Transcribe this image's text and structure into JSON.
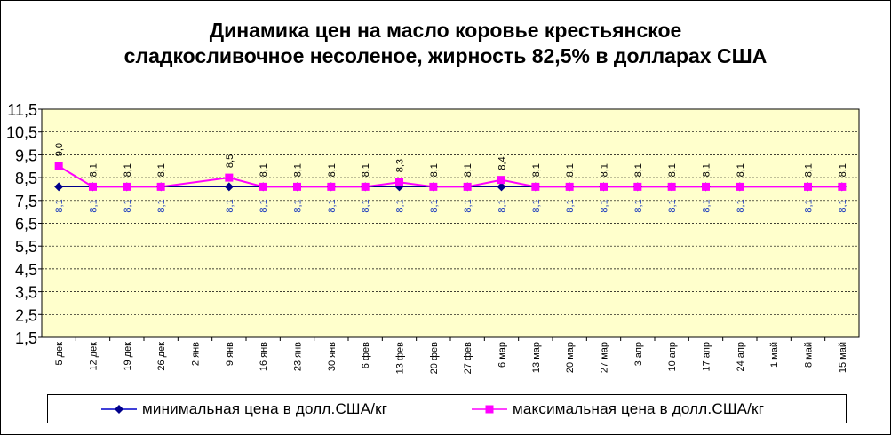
{
  "chart_data": {
    "type": "line",
    "title": "Динамика цен на масло коровье крестьянское сладкосливочное несоленое, жирность 82,5%  в долларах США",
    "title_lines": [
      "Динамика цен на масло коровье крестьянское",
      "сладкосливочное несоленое, жирность  82,5%  в долларах США"
    ],
    "categories": [
      "5 дек",
      "12 дек",
      "19 дек",
      "26 дек",
      "2 янв",
      "9 янв",
      "16 янв",
      "23 янв",
      "30 янв",
      "6 фев",
      "13 фев",
      "20 фев",
      "27 фев",
      "6 мар",
      "13 мар",
      "20 мар",
      "27 мар",
      "3 апр",
      "10 апр",
      "17 апр",
      "24 апр",
      "1 май",
      "8 май",
      "15 май"
    ],
    "y_ticks": [
      "11,5",
      "10,5",
      "9,5",
      "8,5",
      "7,5",
      "6,5",
      "5,5",
      "4,5",
      "3,5",
      "2,5",
      "1,5"
    ],
    "ylim": [
      1.5,
      11.5
    ],
    "grid": true,
    "legend_position": "bottom",
    "series": [
      {
        "name": "минимальная  цена  в долл.США/кг",
        "color": "#00008B",
        "marker": "diamond",
        "values": [
          8.1,
          8.1,
          8.1,
          8.1,
          null,
          8.1,
          8.1,
          8.1,
          8.1,
          8.1,
          8.1,
          8.1,
          8.1,
          8.1,
          8.1,
          8.1,
          8.1,
          8.1,
          8.1,
          8.1,
          8.1,
          null,
          8.1,
          8.1
        ],
        "labels": [
          "8,1",
          "8,1",
          "8,1",
          "8,1",
          null,
          "8,1",
          "8,1",
          "8,1",
          "8,1",
          "8,1",
          "8,1",
          "8,1",
          "8,1",
          "8,1",
          "8,1",
          "8,1",
          "8,1",
          "8,1",
          "8,1",
          "8,1",
          "8,1",
          null,
          "8,1",
          "8,1"
        ]
      },
      {
        "name": "максимальная  цена  в долл.США/кг",
        "color": "#FF00FF",
        "marker": "square",
        "values": [
          9.0,
          8.1,
          8.1,
          8.1,
          null,
          8.5,
          8.1,
          8.1,
          8.1,
          8.1,
          8.3,
          8.1,
          8.1,
          8.4,
          8.1,
          8.1,
          8.1,
          8.1,
          8.1,
          8.1,
          8.1,
          null,
          8.1,
          8.1
        ],
        "labels": [
          "9,0",
          "8,1",
          "8,1",
          "8,1",
          null,
          "8,5",
          "8,1",
          "8,1",
          "8,1",
          "8,1",
          "8,3",
          "8,1",
          "8,1",
          "8,4",
          "8,1",
          "8,1",
          "8,1",
          "8,1",
          "8,1",
          "8,1",
          "8,1",
          null,
          "8,1",
          "8,1"
        ]
      }
    ],
    "colors": {
      "plot_background": "#FFFFCC",
      "frame": "#000000",
      "gridline": "#000000"
    }
  }
}
